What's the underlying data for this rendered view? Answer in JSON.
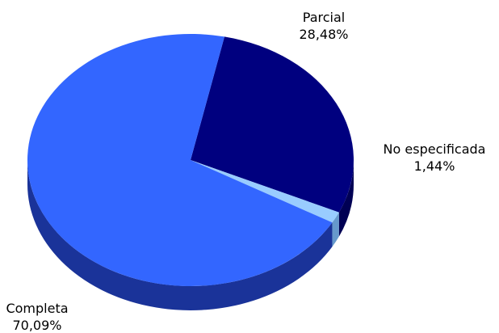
{
  "chart_data": {
    "type": "pie",
    "style": "3d",
    "slices": [
      {
        "label": "Parcial",
        "pct_text": "28,48%",
        "value": 28.48,
        "color": "#00007f",
        "side_color": "#000054"
      },
      {
        "label": "No especificada",
        "pct_text": "1,44%",
        "value": 1.44,
        "color": "#99ccff",
        "side_color": "#6699cc"
      },
      {
        "label": "Completa",
        "pct_text": "70,09%",
        "value": 70.09,
        "color": "#3366ff",
        "side_color": "#1a3399"
      }
    ]
  }
}
